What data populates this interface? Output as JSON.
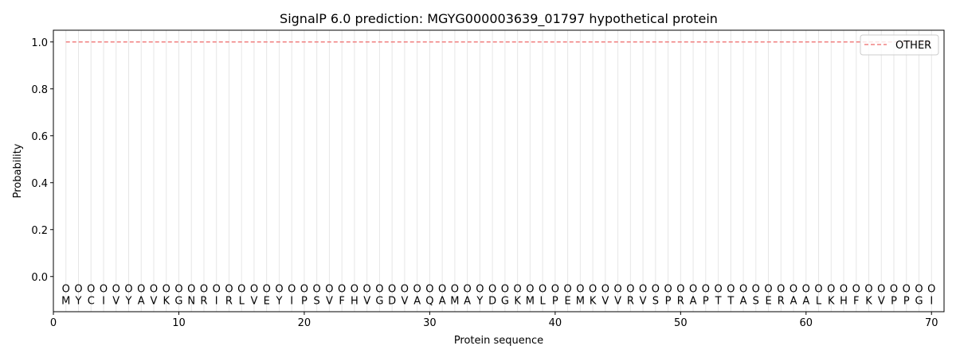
{
  "chart_data": {
    "type": "line",
    "title": "SignalP 6.0 prediction: MGYG000003639_01797 hypothetical protein",
    "xlabel": "Protein sequence",
    "ylabel": "Probability",
    "xlim": [
      0,
      71
    ],
    "ylim": [
      -0.15,
      1.05
    ],
    "xticks": [
      0,
      10,
      20,
      30,
      40,
      50,
      60,
      70
    ],
    "yticks": [
      0.0,
      0.2,
      0.4,
      0.6,
      0.8,
      1.0
    ],
    "ytick_labels": [
      "0.0",
      "0.2",
      "0.4",
      "0.6",
      "0.8",
      "1.0"
    ],
    "grid": "vertical lines at each residue",
    "legend_placement": "top-right",
    "sequence": [
      "M",
      "Y",
      "C",
      "I",
      "V",
      "Y",
      "A",
      "V",
      "K",
      "G",
      "N",
      "R",
      "I",
      "R",
      "L",
      "V",
      "E",
      "Y",
      "I",
      "P",
      "S",
      "V",
      "F",
      "H",
      "V",
      "G",
      "D",
      "V",
      "A",
      "Q",
      "A",
      "M",
      "A",
      "Y",
      "D",
      "G",
      "K",
      "M",
      "L",
      "P",
      "E",
      "M",
      "K",
      "V",
      "V",
      "R",
      "V",
      "S",
      "P",
      "R",
      "A",
      "P",
      "T",
      "T",
      "A",
      "S",
      "E",
      "R",
      "A",
      "A",
      "L",
      "K",
      "H",
      "F",
      "K",
      "V",
      "P",
      "P",
      "G",
      "I"
    ],
    "predicted_label": "O",
    "series": [
      {
        "name": "OTHER",
        "color": "#f08080",
        "style": "dashed",
        "x_start": 1,
        "x_end": 70,
        "value": 1.0
      }
    ]
  }
}
